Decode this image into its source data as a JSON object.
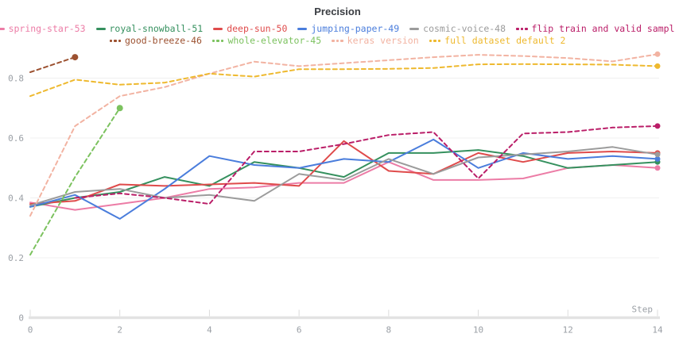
{
  "title": "Precision",
  "chart_data": {
    "type": "line",
    "title": "Precision",
    "xlabel": "Step",
    "ylabel": "",
    "xlim": [
      0,
      14
    ],
    "ylim": [
      0,
      0.9
    ],
    "grid": true,
    "legend_position": "top",
    "x_ticks": [
      0,
      2,
      4,
      6,
      8,
      10,
      12,
      14
    ],
    "y_ticks": [
      {
        "value": 0,
        "label": "0"
      },
      {
        "value": 0.2,
        "label": "0.2"
      },
      {
        "value": 0.4,
        "label": "0.4"
      },
      {
        "value": 0.6,
        "label": "0.6"
      },
      {
        "value": 0.8,
        "label": "0.8"
      }
    ],
    "axis_colors": {
      "grid": "#f0f0f0",
      "baseline": "#e3e3e3",
      "tick": "#dcdcdc",
      "tick_text": "#9a9fa5"
    },
    "legend_rows": [
      [
        0,
        1,
        2,
        3,
        4,
        5
      ],
      [
        6,
        7,
        8,
        9
      ]
    ],
    "series": [
      {
        "name": "spring-star-53",
        "color": "#ec7ca6",
        "style": "solid",
        "start_step": 0,
        "end_dot": true,
        "values": [
          0.385,
          0.36,
          0.38,
          0.4,
          0.43,
          0.435,
          0.45,
          0.45,
          0.52,
          0.46,
          0.46,
          0.465,
          0.5,
          0.51,
          0.5
        ]
      },
      {
        "name": "royal-snowball-51",
        "color": "#35905e",
        "style": "solid",
        "start_step": 0,
        "end_dot": true,
        "values": [
          0.37,
          0.4,
          0.42,
          0.47,
          0.44,
          0.52,
          0.5,
          0.47,
          0.55,
          0.55,
          0.56,
          0.54,
          0.5,
          0.51,
          0.52
        ]
      },
      {
        "name": "deep-sun-50",
        "color": "#df4b4b",
        "style": "solid",
        "start_step": 0,
        "end_dot": true,
        "values": [
          0.38,
          0.39,
          0.445,
          0.44,
          0.445,
          0.45,
          0.44,
          0.59,
          0.49,
          0.48,
          0.55,
          0.52,
          0.55,
          0.555,
          0.55
        ]
      },
      {
        "name": "jumping-paper-49",
        "color": "#4a7ddc",
        "style": "solid",
        "start_step": 0,
        "end_dot": true,
        "values": [
          0.37,
          0.41,
          0.33,
          0.43,
          0.54,
          0.51,
          0.5,
          0.53,
          0.52,
          0.595,
          0.5,
          0.55,
          0.53,
          0.54,
          0.53
        ]
      },
      {
        "name": "cosmic-voice-48",
        "color": "#9b9b9b",
        "style": "solid",
        "start_step": 0,
        "end_dot": true,
        "values": [
          0.375,
          0.42,
          0.43,
          0.4,
          0.41,
          0.39,
          0.48,
          0.46,
          0.53,
          0.48,
          0.535,
          0.545,
          0.555,
          0.57,
          0.545
        ]
      },
      {
        "name": "flip train and valid sample",
        "color": "#ba1e68",
        "style": "dashed",
        "start_step": 1,
        "end_dot": true,
        "values": [
          0.4,
          0.415,
          0.4,
          0.38,
          0.555,
          0.555,
          0.58,
          0.61,
          0.62,
          0.465,
          0.615,
          0.62,
          0.635,
          0.64
        ]
      },
      {
        "name": "good-breeze-46",
        "color": "#9c5130",
        "style": "dashed",
        "start_step": 0,
        "end_dot": true,
        "values": [
          0.82,
          0.87
        ]
      },
      {
        "name": "whole-elevator-45",
        "color": "#7cc25f",
        "style": "dashed",
        "start_step": 0,
        "end_dot": true,
        "values": [
          0.21,
          0.47,
          0.7
        ]
      },
      {
        "name": "keras version",
        "color": "#f2b3a2",
        "style": "dashed",
        "start_step": 0,
        "end_dot": true,
        "values": [
          0.34,
          0.64,
          0.74,
          0.77,
          0.815,
          0.855,
          0.84,
          0.85,
          0.86,
          0.87,
          0.878,
          0.874,
          0.867,
          0.856,
          0.88
        ]
      },
      {
        "name": "full dataset default 2",
        "color": "#eeb92f",
        "style": "dashed",
        "start_step": 0,
        "end_dot": true,
        "values": [
          0.74,
          0.795,
          0.778,
          0.785,
          0.815,
          0.805,
          0.83,
          0.83,
          0.831,
          0.834,
          0.846,
          0.847,
          0.846,
          0.845,
          0.84
        ]
      }
    ]
  }
}
